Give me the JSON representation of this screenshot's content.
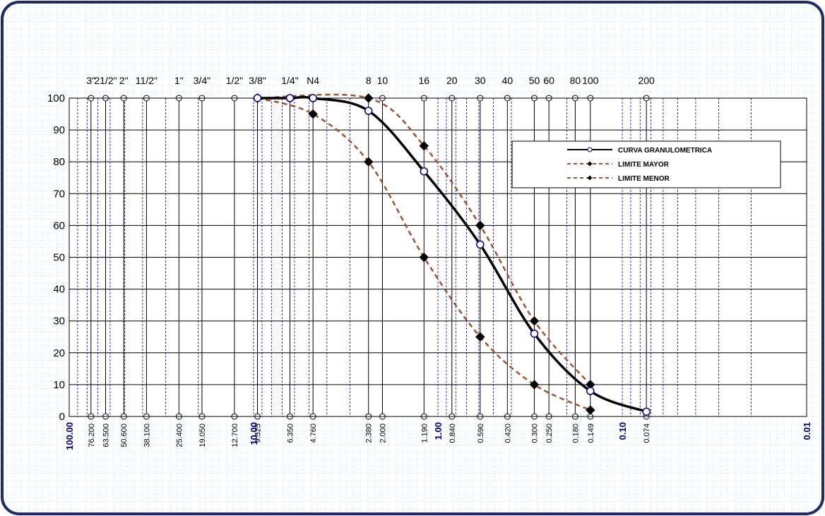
{
  "chart_data": {
    "type": "line",
    "x_scale": "log",
    "x_reversed": true,
    "xlim": [
      100,
      0.01
    ],
    "ylim": [
      0,
      100
    ],
    "y_ticks": [
      0,
      10,
      20,
      30,
      40,
      50,
      60,
      70,
      80,
      90,
      100
    ],
    "decade_labels": [
      "100.00",
      "10.00",
      "1.00",
      "0.10",
      "0.01"
    ],
    "decade_values": [
      100,
      10,
      1,
      0.1,
      0.01
    ],
    "sieves": [
      {
        "name": "3\"",
        "opening": 76.2,
        "opening_label": "76.200"
      },
      {
        "name": "21/2\"",
        "opening": 63.5,
        "opening_label": "63.500"
      },
      {
        "name": "2\"",
        "opening": 50.6,
        "opening_label": "50.600"
      },
      {
        "name": "11/2\"",
        "opening": 38.1,
        "opening_label": "38.100"
      },
      {
        "name": "1\"",
        "opening": 25.4,
        "opening_label": "25.400"
      },
      {
        "name": "3/4\"",
        "opening": 19.05,
        "opening_label": "19.050"
      },
      {
        "name": "1/2\"",
        "opening": 12.7,
        "opening_label": "12.700"
      },
      {
        "name": "3/8\"",
        "opening": 9.525,
        "opening_label": "9.525"
      },
      {
        "name": "1/4\"",
        "opening": 6.35,
        "opening_label": "6.350"
      },
      {
        "name": "N4",
        "opening": 4.76,
        "opening_label": "4.760"
      },
      {
        "name": "8",
        "opening": 2.38,
        "opening_label": "2.380"
      },
      {
        "name": "10",
        "opening": 2.0,
        "opening_label": "2.000"
      },
      {
        "name": "16",
        "opening": 1.19,
        "opening_label": "1.190"
      },
      {
        "name": "20",
        "opening": 0.84,
        "opening_label": "0.840"
      },
      {
        "name": "30",
        "opening": 0.59,
        "opening_label": "0.590"
      },
      {
        "name": "40",
        "opening": 0.42,
        "opening_label": "0.420"
      },
      {
        "name": "50",
        "opening": 0.3,
        "opening_label": "0.300"
      },
      {
        "name": "60",
        "opening": 0.25,
        "opening_label": "0.250"
      },
      {
        "name": "80",
        "opening": 0.18,
        "opening_label": "0.180"
      },
      {
        "name": "100",
        "opening": 0.149,
        "opening_label": "0.149"
      },
      {
        "name": "200",
        "opening": 0.074,
        "opening_label": "0.074"
      }
    ],
    "series": [
      {
        "name": "CURVA GRANULOMETRICA",
        "color": "#000000",
        "marker": "circle-open",
        "x": [
          9.525,
          6.35,
          4.76,
          2.38,
          1.19,
          0.59,
          0.3,
          0.149,
          0.074
        ],
        "y": [
          100,
          100,
          100,
          96,
          77,
          54,
          26,
          8,
          1.5
        ]
      },
      {
        "name": "LIMITE MAYOR",
        "color": "#a0522d",
        "marker": "diamond",
        "x": [
          9.525,
          2.38,
          1.19,
          0.59,
          0.3,
          0.149
        ],
        "y": [
          100,
          100,
          85,
          60,
          30,
          10
        ]
      },
      {
        "name": "LIMITE MENOR",
        "color": "#a0522d",
        "marker": "diamond",
        "x": [
          9.525,
          4.76,
          2.38,
          1.19,
          0.59,
          0.3,
          0.149
        ],
        "y": [
          100,
          95,
          80,
          50,
          25,
          10,
          2
        ]
      }
    ],
    "legend_position": "top-right",
    "grid": true
  },
  "colors": {
    "frame_border": "#1f2a6b",
    "page_grid": "#8fd3f0",
    "decade_label": "#000080",
    "minor_grid": "#0000cd"
  }
}
